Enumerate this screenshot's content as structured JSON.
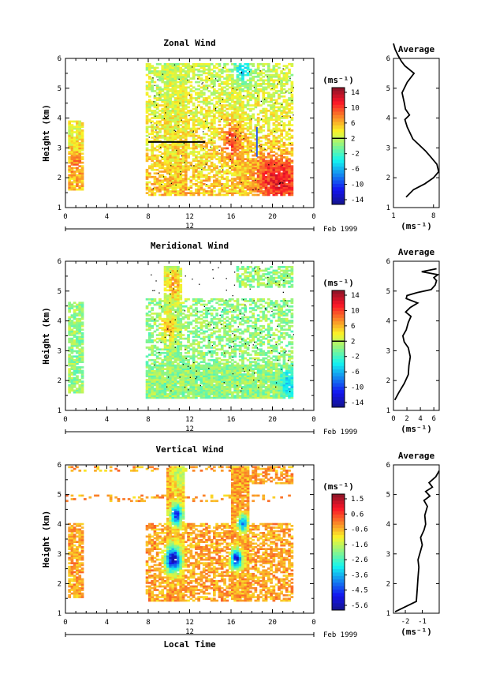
{
  "chart_data": [
    {
      "type": "heatmap",
      "title": "Zonal Wind",
      "ylabel": "Height (km)",
      "xlabel": "",
      "xticks": [
        "0",
        "4",
        "8",
        "12",
        "16",
        "20",
        "0"
      ],
      "xlim": [
        0,
        24
      ],
      "yticks": [
        "1",
        "2",
        "3",
        "4",
        "5",
        "6"
      ],
      "ylim": [
        1,
        6
      ],
      "date_label": "12",
      "date_suffix": "Feb 1999",
      "colorbar": {
        "unit": "(ms⁻¹)",
        "labels": [
          "14",
          "10",
          "6",
          "2",
          "-2",
          "-6",
          "-10",
          "-14"
        ],
        "min": -16,
        "max": 16,
        "zero_line": 2
      },
      "field": {
        "base": 4,
        "noise": 2.5,
        "trend": 0.3,
        "blocks": [
          {
            "t0": 0.1,
            "t1": 1.6,
            "h0": 1.55,
            "h1": 3.9,
            "fill": 0.85
          },
          {
            "t0": 7.6,
            "t1": 22.0,
            "h0": 1.4,
            "h1": 5.8,
            "fill": 0.62
          },
          {
            "t0": 9.4,
            "t1": 11.6,
            "h0": 1.45,
            "h1": 5.8,
            "fill": 0.9
          },
          {
            "t0": 15.8,
            "t1": 17.2,
            "h0": 1.45,
            "h1": 5.3,
            "fill": 0.9
          },
          {
            "t0": 16.5,
            "t1": 22.0,
            "h0": 1.5,
            "h1": 2.6,
            "fill": 0.95
          }
        ],
        "hot": [
          {
            "t": 16.0,
            "h": 3.2,
            "v": 10,
            "r": 1.0
          },
          {
            "t": 19.8,
            "h": 2.0,
            "v": 9,
            "r": 1.6
          },
          {
            "t": 21.2,
            "h": 1.9,
            "v": 8,
            "r": 1.3
          },
          {
            "t": 1.0,
            "h": 2.4,
            "v": 7,
            "r": 0.8
          },
          {
            "t": 17.0,
            "h": 5.6,
            "v": -3,
            "r": 0.8
          }
        ]
      },
      "average_profile": {
        "title": "Average",
        "unit": "(ms⁻¹)",
        "xticks": [
          "1",
          "8"
        ],
        "xlim": [
          1,
          9
        ],
        "yticks": [
          "1",
          "2",
          "3",
          "4",
          "5",
          "6"
        ],
        "ylim": [
          1,
          6
        ],
        "x": [
          3.2,
          4.5,
          6.5,
          8.0,
          8.9,
          8.6,
          7.5,
          6.6,
          5.5,
          4.4,
          3.9,
          3.4,
          3.0,
          3.8,
          3.1,
          2.9,
          2.5,
          3.4,
          4.6,
          3.0,
          2.4,
          1.8,
          1.3,
          1.0
        ],
        "y": [
          1.35,
          1.6,
          1.8,
          2.0,
          2.2,
          2.45,
          2.7,
          2.9,
          3.1,
          3.3,
          3.5,
          3.7,
          3.95,
          4.1,
          4.3,
          4.5,
          4.85,
          5.2,
          5.5,
          5.75,
          5.9,
          6.1,
          6.3,
          6.5
        ]
      }
    },
    {
      "type": "heatmap",
      "title": "Meridional Wind",
      "ylabel": "Height (km)",
      "xlabel": "",
      "xticks": [
        "0",
        "4",
        "8",
        "12",
        "16",
        "20",
        "0"
      ],
      "xlim": [
        0,
        24
      ],
      "yticks": [
        "1",
        "2",
        "3",
        "4",
        "5",
        "6"
      ],
      "ylim": [
        1,
        6
      ],
      "date_label": "12",
      "date_suffix": "Feb 1999",
      "colorbar": {
        "unit": "(ms⁻¹)",
        "labels": [
          "14",
          "10",
          "6",
          "2",
          "-2",
          "-6",
          "-10",
          "-14"
        ],
        "min": -16,
        "max": 16,
        "zero_line": 2
      },
      "field": {
        "base": 0.5,
        "noise": 2.5,
        "trend": 0,
        "blocks": [
          {
            "t0": 0.1,
            "t1": 1.6,
            "h0": 1.55,
            "h1": 4.6,
            "fill": 0.8
          },
          {
            "t0": 7.6,
            "t1": 22.0,
            "h0": 1.4,
            "h1": 4.7,
            "fill": 0.55
          },
          {
            "t0": 9.4,
            "t1": 11.2,
            "h0": 1.45,
            "h1": 5.8,
            "fill": 0.9
          },
          {
            "t0": 16.5,
            "t1": 22.0,
            "h0": 5.1,
            "h1": 5.8,
            "fill": 0.6
          },
          {
            "t0": 7.6,
            "t1": 22.0,
            "h0": 1.4,
            "h1": 2.5,
            "fill": 0.95
          }
        ],
        "hot": [
          {
            "t": 10.4,
            "h": 5.2,
            "v": 7,
            "r": 1.0
          },
          {
            "t": 9.8,
            "h": 3.8,
            "v": 6,
            "r": 0.8
          },
          {
            "t": 21.5,
            "h": 1.9,
            "v": -5,
            "r": 0.8
          }
        ]
      },
      "average_profile": {
        "title": "Average",
        "unit": "(ms⁻¹)",
        "xticks": [
          "0",
          "2",
          "4",
          "6"
        ],
        "xlim": [
          0,
          6.8
        ],
        "yticks": [
          "1",
          "2",
          "3",
          "4",
          "5",
          "6"
        ],
        "ylim": [
          1,
          6
        ],
        "x": [
          0.2,
          0.8,
          1.6,
          2.2,
          2.3,
          2.5,
          2.2,
          1.6,
          1.4,
          1.9,
          2.2,
          2.6,
          1.8,
          2.5,
          3.6,
          1.9,
          2.0,
          3.5,
          5.6,
          6.2,
          6.4,
          6.0,
          6.6,
          4.2,
          6.4
        ],
        "y": [
          1.35,
          1.6,
          1.9,
          2.2,
          2.5,
          2.8,
          3.1,
          3.3,
          3.5,
          3.7,
          3.95,
          4.15,
          4.3,
          4.45,
          4.6,
          4.75,
          4.85,
          4.95,
          5.05,
          5.2,
          5.35,
          5.45,
          5.55,
          5.65,
          5.75
        ]
      }
    },
    {
      "type": "heatmap",
      "title": "Vertical Wind",
      "ylabel": "Height (km)",
      "xlabel": "Local Time",
      "xticks": [
        "0",
        "4",
        "8",
        "12",
        "16",
        "20",
        "0"
      ],
      "xlim": [
        0,
        24
      ],
      "yticks": [
        "1",
        "2",
        "3",
        "4",
        "5",
        "6"
      ],
      "ylim": [
        1,
        6
      ],
      "date_label": "12",
      "date_suffix": "Feb 1999",
      "colorbar": {
        "unit": "(ms⁻¹)",
        "labels": [
          "1.5",
          "0.6",
          "-0.6",
          "-1.6",
          "-2.6",
          "-3.6",
          "-4.5",
          "-5.6"
        ],
        "min": -6.1,
        "max": 2.0,
        "zero_line": null
      },
      "field": {
        "base": -0.3,
        "noise": 0.6,
        "trend": 0,
        "blocks": [
          {
            "t0": 0.1,
            "t1": 1.6,
            "h0": 1.5,
            "h1": 4.0,
            "fill": 0.8
          },
          {
            "t0": 0.0,
            "t1": 22.0,
            "h0": 4.7,
            "h1": 4.95,
            "fill": 0.25
          },
          {
            "t0": 0.0,
            "t1": 22.0,
            "h0": 5.75,
            "h1": 5.95,
            "fill": 0.3
          },
          {
            "t0": 7.6,
            "t1": 22.0,
            "h0": 1.4,
            "h1": 4.0,
            "fill": 0.65
          },
          {
            "t0": 9.6,
            "t1": 11.4,
            "h0": 1.4,
            "h1": 5.95,
            "fill": 0.95
          },
          {
            "t0": 16.0,
            "t1": 17.6,
            "h0": 1.4,
            "h1": 5.95,
            "fill": 0.95
          },
          {
            "t0": 17.5,
            "t1": 22.0,
            "h0": 5.3,
            "h1": 5.95,
            "fill": 0.55
          }
        ],
        "hot": [
          {
            "t": 10.3,
            "h": 2.8,
            "v": -5.8,
            "r": 0.75
          },
          {
            "t": 10.6,
            "h": 4.3,
            "v": -4.8,
            "r": 0.6
          },
          {
            "t": 16.4,
            "h": 2.8,
            "v": -5.2,
            "r": 0.55
          },
          {
            "t": 17.0,
            "h": 4.0,
            "v": -4.0,
            "r": 0.5
          },
          {
            "t": 10.9,
            "h": 5.6,
            "v": -1.5,
            "r": 0.9
          }
        ]
      },
      "average_profile": {
        "title": "Average",
        "unit": "(ms⁻¹)",
        "xticks": [
          "-2",
          "-1"
        ],
        "xlim": [
          -2.7,
          0
        ],
        "yticks": [
          "1",
          "2",
          "3",
          "4",
          "5",
          "6"
        ],
        "ylim": [
          1,
          6
        ],
        "x": [
          -2.6,
          -1.35,
          -1.3,
          -1.25,
          -1.2,
          -1.25,
          -1.15,
          -1.0,
          -1.1,
          -0.9,
          -0.8,
          -0.85,
          -0.7,
          -0.9,
          -0.55,
          -0.8,
          -0.4,
          -0.6,
          -0.2,
          0.0
        ],
        "y": [
          1.05,
          1.4,
          1.8,
          2.2,
          2.55,
          2.8,
          3.0,
          3.3,
          3.55,
          3.8,
          4.0,
          4.3,
          4.6,
          4.8,
          4.95,
          5.1,
          5.25,
          5.4,
          5.6,
          5.8
        ]
      }
    }
  ]
}
